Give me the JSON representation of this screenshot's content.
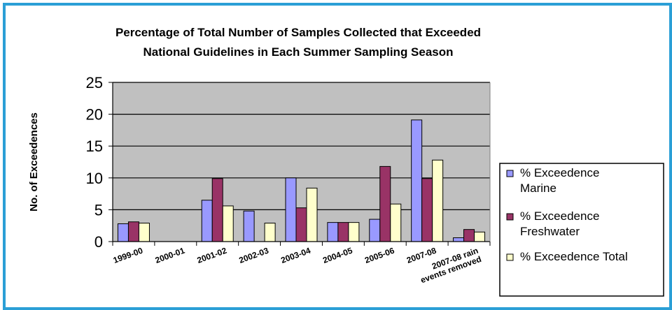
{
  "chart_data": {
    "type": "bar",
    "title_lines": [
      "Percentage of Total Number of Samples Collected that Exceeded",
      "National Guidelines in Each Summer Sampling Season"
    ],
    "ylabel": "No. of Exceedences",
    "xlabel": "",
    "ylim": [
      0,
      25
    ],
    "yticks": [
      0,
      5,
      10,
      15,
      20,
      25
    ],
    "grid": true,
    "legend_position": "right",
    "categories": [
      [
        "1999-00"
      ],
      [
        "2000-01"
      ],
      [
        "2001-02"
      ],
      [
        "2002-03"
      ],
      [
        "2003-04"
      ],
      [
        "2004-05"
      ],
      [
        "2005-06"
      ],
      [
        "2007-08"
      ],
      [
        "2007-08 rain",
        "events removed"
      ]
    ],
    "series": [
      {
        "name": "% Exceedence Marine",
        "legend_lines": [
          "% Exceedence",
          "Marine"
        ],
        "color": "#9999ff",
        "values": [
          2.8,
          0,
          6.5,
          4.8,
          10,
          3,
          3.5,
          19.1,
          0.6
        ]
      },
      {
        "name": "% Exceedence Freshwater",
        "legend_lines": [
          "% Exceedence",
          "Freshwater"
        ],
        "color": "#993366",
        "values": [
          3.1,
          0,
          9.9,
          0,
          5.3,
          3,
          11.8,
          9.9,
          1.9
        ]
      },
      {
        "name": "% Exceedence Total",
        "legend_lines": [
          "% Exceedence Total"
        ],
        "color": "#ffffcc",
        "values": [
          2.9,
          0,
          5.6,
          2.9,
          8.4,
          3,
          5.9,
          12.8,
          1.5
        ]
      }
    ],
    "plot_background": "#c0c0c0",
    "frame_color": "#2b9fd6"
  }
}
